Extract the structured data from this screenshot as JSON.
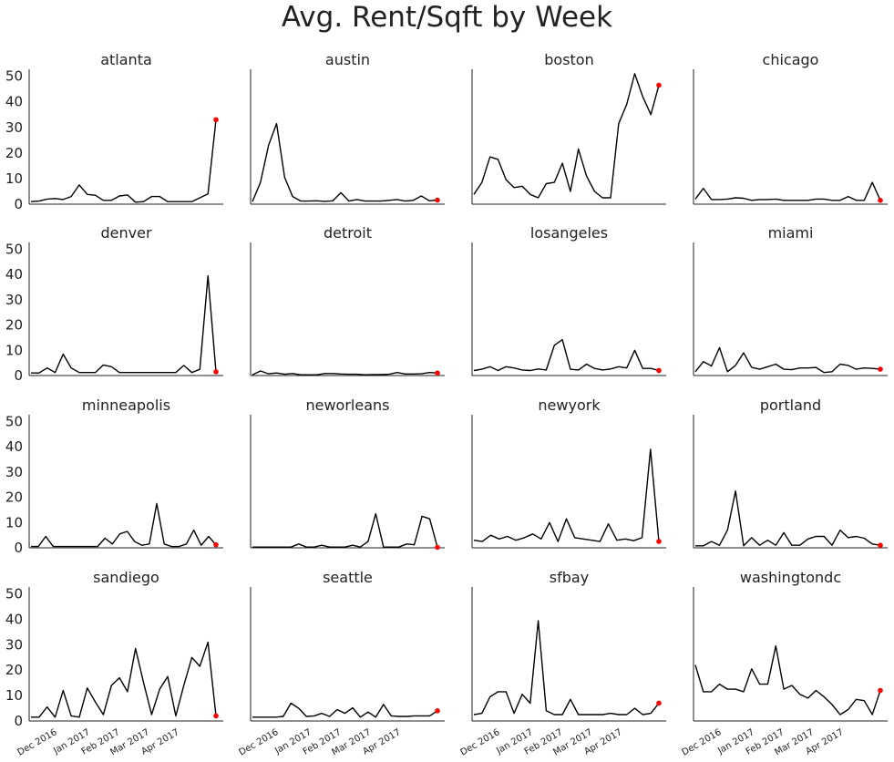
{
  "title": "Avg. Rent/Sqft by Week",
  "chart_data": {
    "type": "line",
    "layout": {
      "rows": 4,
      "cols": 4,
      "sharey": true,
      "sharex": true
    },
    "ylim": [
      0,
      52
    ],
    "yticks": [
      0,
      10,
      20,
      30,
      40,
      50
    ],
    "x_index_range": [
      0,
      28
    ],
    "xticks": [
      {
        "label": "Dec 2016",
        "index": 4
      },
      {
        "label": "Jan 2017",
        "index": 9
      },
      {
        "label": "Feb 2017",
        "index": 13.5
      },
      {
        "label": "Mar 2017",
        "index": 18
      },
      {
        "label": "Apr 2017",
        "index": 22.5
      }
    ],
    "line_color": "#000000",
    "last_point_color": "#ff0000",
    "grid": false,
    "series": [
      {
        "name": "atlanta",
        "values": [
          1,
          1.2,
          2,
          2.2,
          1.8,
          3,
          7.5,
          3.8,
          3.5,
          1.5,
          1.5,
          3.2,
          3.6,
          0.8,
          1,
          3,
          3,
          1,
          1,
          1,
          1,
          2.5,
          4,
          33
        ]
      },
      {
        "name": "austin",
        "values": [
          1,
          8.5,
          23,
          31.5,
          10.5,
          3,
          1.2,
          1.2,
          1.3,
          1.1,
          1.3,
          4.5,
          1.2,
          1.8,
          1.2,
          1.2,
          1.2,
          1.5,
          1.8,
          1.2,
          1.5,
          3.2,
          1.3,
          1.6
        ]
      },
      {
        "name": "boston",
        "values": [
          3.8,
          8.5,
          18.5,
          17.5,
          9.5,
          6.5,
          7,
          3.8,
          2.5,
          8,
          8.5,
          16,
          5,
          21.5,
          11,
          5,
          2.5,
          2.5,
          31.5,
          39,
          51,
          42,
          35,
          46.5
        ]
      },
      {
        "name": "chicago",
        "values": [
          2,
          6.2,
          1.8,
          1.8,
          2,
          2.5,
          2.3,
          1.5,
          1.8,
          1.8,
          2,
          1.5,
          1.5,
          1.5,
          1.5,
          2,
          2,
          1.5,
          1.5,
          3,
          1.5,
          1.5,
          8.5,
          1.5
        ]
      },
      {
        "name": "denver",
        "values": [
          1,
          1,
          3,
          1.2,
          8.5,
          3,
          1.2,
          1.2,
          1.2,
          4.2,
          3.5,
          1.2,
          1.2,
          1.2,
          1.2,
          1.2,
          1.2,
          1.2,
          1.2,
          4,
          1.2,
          2.5,
          39.5,
          1.5
        ]
      },
      {
        "name": "detroit",
        "values": [
          0.3,
          1.8,
          0.7,
          1,
          0.5,
          0.8,
          0.3,
          0.3,
          0.3,
          0.8,
          0.8,
          0.6,
          0.5,
          0.5,
          0.3,
          0.4,
          0.4,
          0.5,
          1.2,
          0.6,
          0.6,
          0.7,
          1.2,
          1
        ]
      },
      {
        "name": "losangeles",
        "values": [
          2,
          2.5,
          3.5,
          2,
          3.5,
          3,
          2.2,
          2,
          2.6,
          2.2,
          12,
          14.2,
          2.5,
          2.2,
          4.5,
          2.8,
          2.2,
          2.6,
          3.5,
          3,
          10,
          2.8,
          2.8,
          2
        ]
      },
      {
        "name": "miami",
        "values": [
          1.5,
          5.5,
          3.8,
          11,
          1.5,
          4,
          9,
          3.2,
          2.5,
          3.5,
          4.5,
          2.5,
          2.3,
          3,
          3,
          3.2,
          1.2,
          1.5,
          4.5,
          4,
          2.5,
          3,
          2.8,
          2.5
        ]
      },
      {
        "name": "minneapolis",
        "values": [
          0.5,
          0.5,
          4.5,
          0.5,
          0.5,
          0.5,
          0.5,
          0.5,
          0.5,
          0.5,
          3.8,
          1.5,
          5.5,
          6.5,
          2.5,
          1,
          1.5,
          17.5,
          1.5,
          0.5,
          0.5,
          1.5,
          7,
          1,
          4.5,
          1.2
        ]
      },
      {
        "name": "neworleans",
        "values": [
          0.3,
          0.3,
          0.3,
          0.3,
          0.3,
          0.3,
          1.5,
          0.3,
          0.3,
          1,
          0.3,
          0.3,
          0.3,
          1,
          0.3,
          2.5,
          13.5,
          0.3,
          0.3,
          0.3,
          1.5,
          1.2,
          12.5,
          11.5,
          0.2
        ]
      },
      {
        "name": "newyork",
        "values": [
          3,
          2.5,
          5,
          3.5,
          4.5,
          3,
          4,
          5.5,
          3.5,
          10,
          2.5,
          11.5,
          4,
          3.5,
          3,
          2.5,
          9.5,
          3,
          3.5,
          2.8,
          4,
          39,
          2.5
        ]
      },
      {
        "name": "portland",
        "values": [
          0.8,
          0.8,
          2.5,
          1,
          7,
          22.5,
          0.8,
          4,
          1,
          3,
          1,
          6,
          1,
          1,
          3.5,
          4.5,
          4.5,
          1,
          7,
          4,
          4.5,
          3.8,
          1.5,
          1
        ]
      },
      {
        "name": "sandiego",
        "values": [
          1.5,
          1.5,
          5.5,
          1.5,
          12,
          2,
          1.5,
          13,
          7.5,
          2.5,
          14,
          17,
          11.5,
          28.5,
          15,
          2.5,
          12.5,
          17.5,
          2,
          14,
          25,
          21.5,
          31,
          2
        ]
      },
      {
        "name": "seattle",
        "values": [
          1.5,
          1.5,
          1.5,
          1.5,
          1.8,
          7,
          5,
          1.8,
          2,
          3,
          1.8,
          4.5,
          3,
          5.2,
          1.5,
          3.5,
          1.5,
          6.5,
          2,
          1.8,
          1.8,
          2,
          2,
          2,
          4
        ]
      },
      {
        "name": "sfbay",
        "values": [
          2.5,
          3,
          9.5,
          11.5,
          11.5,
          3,
          10.5,
          7,
          39.5,
          4,
          2.5,
          2.5,
          8.5,
          2.5,
          2.5,
          2.5,
          2.5,
          3,
          2.5,
          2.5,
          5,
          2.5,
          3,
          7
        ]
      },
      {
        "name": "washingtondc",
        "values": [
          22,
          11.5,
          11.5,
          14.5,
          12.5,
          12.5,
          11.5,
          20.5,
          14.5,
          14.5,
          29.5,
          12.5,
          14,
          10.5,
          9,
          12,
          9.5,
          6.5,
          2.5,
          4.5,
          8.5,
          8,
          2.5,
          12
        ]
      }
    ]
  }
}
